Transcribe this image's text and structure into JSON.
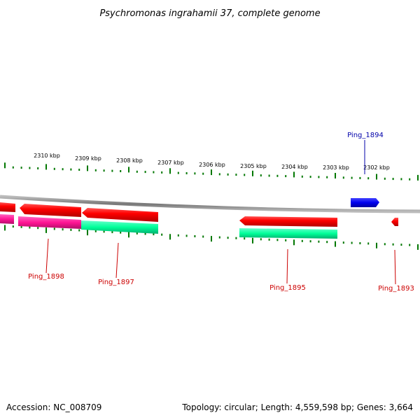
{
  "title": "Psychromonas ingrahamii 37, complete genome",
  "accession": "Accession: NC_008709",
  "summary": "Topology: circular; Length: 4,559,598 bp; Genes: 3,664",
  "scale_labels": [
    "2310 kbp",
    "2309 kbp",
    "2308 kbp",
    "2307 kbp",
    "2306 kbp",
    "2305 kbp",
    "2304 kbp",
    "2303 kbp",
    "2302 kbp"
  ],
  "genes": [
    {
      "label": "Ping_1898",
      "color": "#cc0000"
    },
    {
      "label": "Ping_1897",
      "color": "#cc0000"
    },
    {
      "label": "Ping_1895",
      "color": "#cc0000"
    },
    {
      "label": "Ping_1893",
      "color": "#cc0000"
    },
    {
      "label": "Ping_1894",
      "color": "#0000aa"
    }
  ],
  "colors": {
    "backbone": "#888888",
    "tick": "#007700",
    "reverse_gene": "#ff0000",
    "forward_gene": "#0000ee",
    "magenta_feature": "#ff1493",
    "green_feature": "#00ff99"
  }
}
